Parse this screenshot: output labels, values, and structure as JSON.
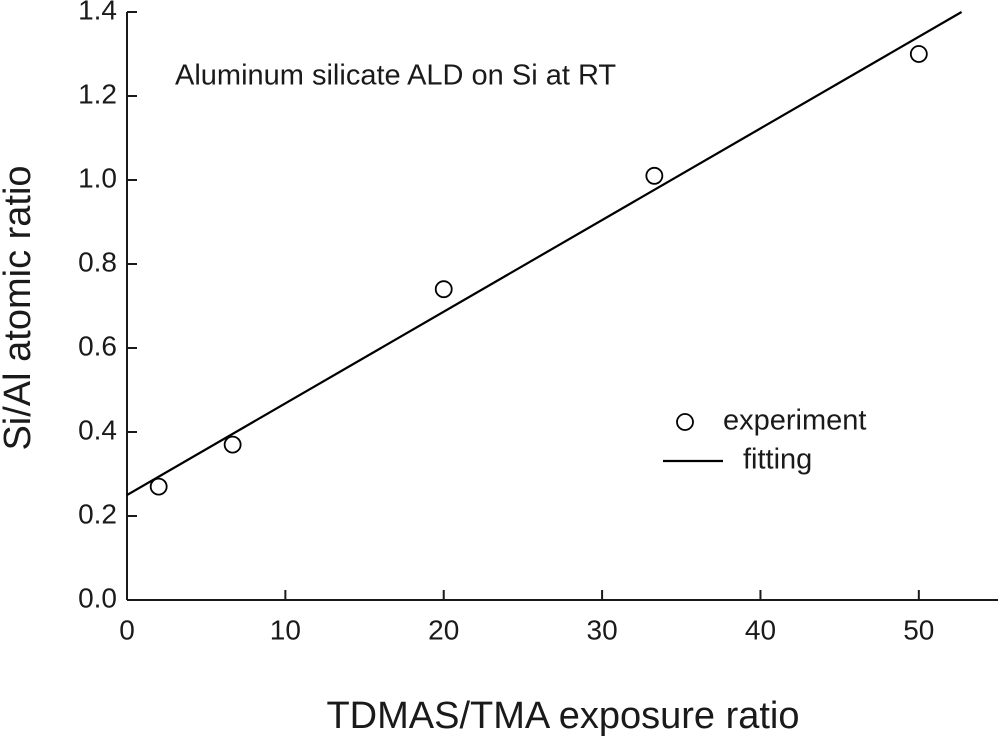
{
  "chart_data": {
    "type": "scatter",
    "annotation": "Aluminum silicate ALD on Si at RT",
    "xlabel": "TDMAS/TMA exposure ratio",
    "ylabel": "Si/Al atomic ratio",
    "series": [
      {
        "name": "experiment",
        "type": "scatter",
        "color": "#000000",
        "x": [
          2,
          6.67,
          20,
          33.3,
          50
        ],
        "values": [
          0.27,
          0.37,
          0.74,
          1.01,
          1.3
        ]
      },
      {
        "name": "fitting",
        "type": "line",
        "color": "#000000",
        "x": [
          0,
          52.7
        ],
        "values": [
          0.25,
          1.4
        ]
      }
    ],
    "xlim": [
      0,
      55
    ],
    "xticks": [
      0,
      10,
      20,
      30,
      40,
      50
    ],
    "ylim": [
      0,
      1.4
    ],
    "yticks": [
      {
        "value": 0,
        "label": "0.0"
      },
      0.2,
      0.4,
      0.6,
      0.8,
      {
        "value": 1,
        "label": "1.0"
      },
      1.2,
      1.4
    ],
    "legend": "center right",
    "grid": false
  }
}
